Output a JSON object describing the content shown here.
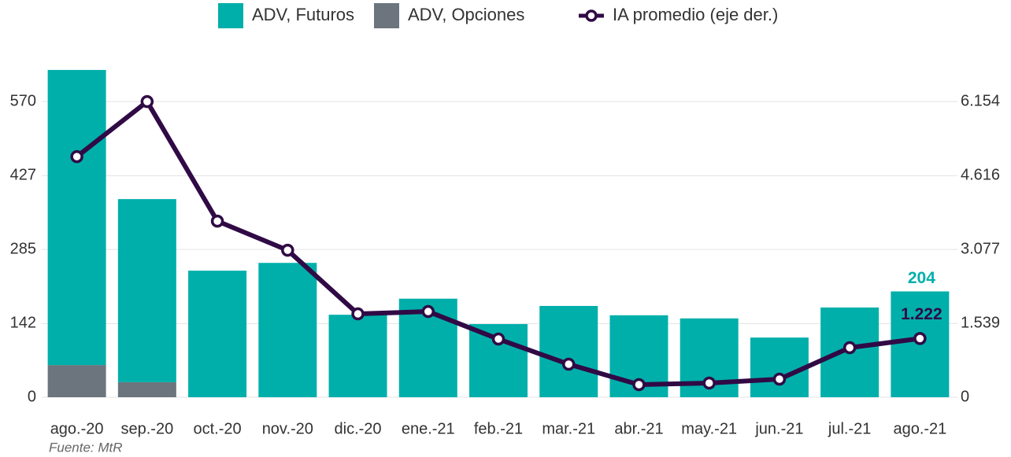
{
  "chart_data": {
    "type": "bar",
    "source": "Fuente: MtR",
    "categories": [
      "ago.-20",
      "sep.-20",
      "oct.-20",
      "nov.-20",
      "dic.-20",
      "ene.-21",
      "feb.-21",
      "mar.-21",
      "abr.-21",
      "may.-21",
      "jun.-21",
      "jul.-21",
      "ago.-21"
    ],
    "series": [
      {
        "name": "ADV, Futuros",
        "type": "bar",
        "color": "#00afaa",
        "values": [
          569,
          353,
          244,
          259,
          159,
          190,
          141,
          176,
          158,
          152,
          115,
          173,
          204
        ],
        "value_labels": [
          null,
          null,
          null,
          null,
          null,
          null,
          null,
          null,
          null,
          null,
          null,
          null,
          "204"
        ]
      },
      {
        "name": "ADV, Opciones",
        "type": "bar",
        "color": "#6c757d",
        "values": [
          62,
          29,
          0,
          0,
          0,
          0,
          0,
          0,
          0,
          0,
          0,
          0,
          0
        ]
      },
      {
        "name": "IA promedio (eje der.)",
        "type": "line",
        "axis": "y2",
        "color": "#300a45",
        "values": [
          5008,
          6154,
          3666,
          3060,
          1735,
          1784,
          1211,
          687,
          262,
          295,
          376,
          1031,
          1222
        ],
        "value_labels": [
          null,
          null,
          null,
          null,
          null,
          null,
          null,
          null,
          null,
          null,
          null,
          null,
          "1.222"
        ]
      }
    ],
    "ylim": [
      0,
      640
    ],
    "yticks": [
      0,
      142,
      285,
      427,
      570
    ],
    "y2lim": [
      0,
      6910
    ],
    "y2ticks": [
      0,
      {
        "value": 1539,
        "label": "1.539"
      },
      {
        "value": 3077,
        "label": "3.077"
      },
      {
        "value": 4616,
        "label": "4.616"
      },
      {
        "value": 6154,
        "label": "6.154"
      }
    ],
    "grid": true,
    "legend": "top"
  }
}
